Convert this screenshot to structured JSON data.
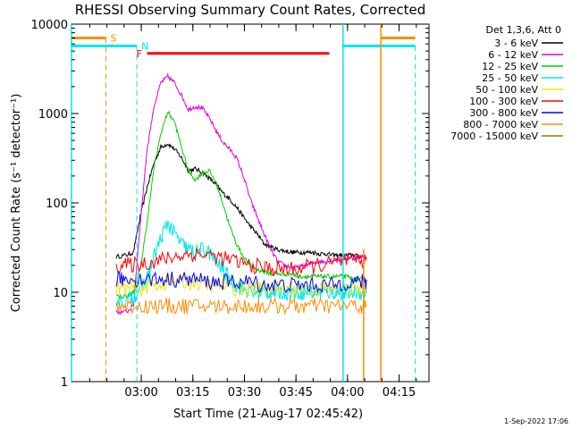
{
  "chart_data": {
    "type": "line",
    "title": "RHESSI Observing Summary Count Rates, Corrected",
    "xlabel": "Start Time (21-Aug-17 02:45:42)",
    "ylabel": "Corrected Count Rate (s⁻¹ detector⁻¹)",
    "yscale": "log",
    "ylim": [
      1,
      10000
    ],
    "xlim_minutes_after_start": [
      -6,
      98
    ],
    "x_tick_labels": [
      "03:00",
      "03:15",
      "03:30",
      "03:45",
      "04:00",
      "04:15"
    ],
    "x_tick_minutes": [
      14.3,
      29.3,
      44.3,
      59.3,
      74.3,
      89.3
    ],
    "y_tick_labels": [
      "1",
      "10",
      "100",
      "1000",
      "10000"
    ],
    "y_tick_values": [
      1,
      10,
      100,
      1000,
      10000
    ],
    "legend_header": "Det 1,3,6, Att 0",
    "legend_position": "right",
    "series": [
      {
        "name": "3 - 6 keV",
        "color": "#000000",
        "x": [
          7,
          10,
          12,
          14,
          16,
          18,
          20,
          22,
          24,
          26,
          28,
          30,
          32,
          34,
          36,
          38,
          40,
          42,
          44,
          46,
          48,
          50,
          52,
          54,
          56,
          58,
          60,
          62,
          64,
          66,
          68,
          70,
          72,
          74,
          76,
          78,
          80
        ],
        "values": [
          25,
          26,
          28,
          70,
          150,
          280,
          420,
          460,
          400,
          320,
          230,
          240,
          220,
          190,
          160,
          130,
          110,
          90,
          70,
          55,
          45,
          35,
          32,
          30,
          29,
          28,
          28,
          28,
          28,
          27,
          27,
          26,
          26,
          26,
          26,
          25,
          25
        ]
      },
      {
        "name": "6 - 12 keV",
        "color": "#e000e0",
        "x": [
          7,
          10,
          12,
          14,
          16,
          18,
          20,
          22,
          24,
          26,
          28,
          30,
          32,
          34,
          36,
          38,
          40,
          42,
          44,
          46,
          48,
          50,
          52,
          54,
          56,
          58,
          60,
          62,
          64,
          66,
          68,
          70,
          72,
          74,
          76,
          78,
          80
        ],
        "values": [
          6,
          6,
          7,
          60,
          400,
          1200,
          2200,
          2600,
          2200,
          1600,
          1100,
          1200,
          1150,
          900,
          650,
          480,
          400,
          320,
          200,
          110,
          70,
          45,
          30,
          22,
          20,
          19,
          19,
          20,
          21,
          22,
          22,
          23,
          23,
          24,
          24,
          25,
          25
        ]
      },
      {
        "name": "12 - 25 keV",
        "color": "#00d000",
        "x": [
          7,
          10,
          12,
          14,
          16,
          18,
          20,
          22,
          24,
          26,
          28,
          30,
          32,
          34,
          36,
          38,
          40,
          42,
          44,
          46,
          48,
          50,
          52,
          54,
          56,
          58,
          60,
          62,
          64,
          66,
          68,
          70,
          72,
          74,
          76,
          78,
          80
        ],
        "values": [
          9,
          9,
          10,
          18,
          60,
          250,
          600,
          1050,
          800,
          420,
          230,
          180,
          215,
          230,
          170,
          100,
          55,
          35,
          25,
          20,
          18,
          17,
          16,
          16,
          16,
          16,
          15,
          15,
          15,
          15,
          15,
          15,
          15,
          15,
          14,
          14,
          14
        ]
      },
      {
        "name": "25 - 50 keV",
        "color": "#00e8e8",
        "x": [
          7,
          10,
          12,
          14,
          16,
          18,
          20,
          22,
          24,
          26,
          28,
          30,
          32,
          34,
          36,
          38,
          40,
          42,
          44,
          46,
          48,
          50,
          52,
          54,
          56,
          58,
          60,
          62,
          64,
          66,
          68,
          70,
          72,
          74,
          76,
          78,
          80
        ],
        "values": [
          8,
          8,
          9,
          11,
          14,
          25,
          40,
          60,
          45,
          35,
          30,
          28,
          30,
          28,
          22,
          18,
          14,
          12,
          11,
          10,
          10,
          10,
          10,
          10,
          10,
          10,
          10,
          10,
          10,
          10,
          10,
          10,
          10,
          10,
          10,
          10,
          10
        ]
      },
      {
        "name": "50 - 100 keV",
        "color": "#e8e800",
        "x": [
          7,
          10,
          14,
          18,
          22,
          26,
          30,
          34,
          38,
          42,
          46,
          50,
          54,
          58,
          62,
          66,
          70,
          74,
          78,
          80
        ],
        "values": [
          11,
          11,
          11,
          12,
          13,
          13,
          13,
          12,
          12,
          11,
          11,
          11,
          11,
          11,
          11,
          11,
          11,
          11,
          11,
          11
        ]
      },
      {
        "name": "100 - 300 keV",
        "color": "#ff0000",
        "x": [
          7,
          10,
          14,
          18,
          22,
          26,
          30,
          34,
          38,
          42,
          46,
          50,
          54,
          58,
          62,
          66,
          70,
          74,
          78,
          80
        ],
        "values": [
          20,
          20,
          21,
          22,
          24,
          26,
          27,
          26,
          24,
          22,
          20,
          19,
          18,
          18,
          19,
          20,
          21,
          22,
          22,
          22
        ]
      },
      {
        "name": "300 - 800 keV",
        "color": "#0000ff",
        "x": [
          7,
          10,
          14,
          18,
          22,
          26,
          30,
          34,
          38,
          42,
          46,
          50,
          54,
          58,
          62,
          66,
          70,
          74,
          78,
          80
        ],
        "values": [
          14,
          14,
          14,
          14,
          14,
          14,
          14,
          13,
          13,
          13,
          13,
          12,
          12,
          12,
          12,
          12,
          12,
          13,
          13,
          13
        ]
      },
      {
        "name": "800 - 7000 keV",
        "color": "#ff8c00",
        "x": [
          7,
          10,
          14,
          18,
          22,
          26,
          30,
          34,
          38,
          42,
          46,
          50,
          54,
          58,
          62,
          66,
          70,
          74,
          78,
          80
        ],
        "values": [
          7,
          7,
          7,
          7,
          7,
          7,
          7,
          7,
          7,
          7,
          7,
          7,
          7,
          7,
          7,
          7,
          7,
          7,
          7,
          7
        ]
      },
      {
        "name": "7000 - 15000 keV",
        "color": "#a07000",
        "x": [],
        "values": []
      }
    ],
    "flag_markers": [
      {
        "label": "S",
        "color": "#ff8c00",
        "x": [
          -6,
          4
        ],
        "y": 7000,
        "dashed_line_x": 4
      },
      {
        "label": "N",
        "color": "#00e8e8",
        "x": [
          -6,
          13
        ],
        "y": 5700,
        "dashed_line_x": 13
      },
      {
        "label": "F",
        "color": "#ff0000",
        "x": [
          16,
          69
        ],
        "y": 4700
      },
      {
        "label": "",
        "color": "#00e8e8",
        "x": [
          73,
          94
        ],
        "y": 5700,
        "solid_line_x": 73,
        "dashed_line_x": 94
      },
      {
        "label": "",
        "color": "#ff8c00",
        "x": [
          84,
          94
        ],
        "y": 7000,
        "solid_line_x": 84,
        "solid_line_x2": 79
      },
      {
        "label": "",
        "color": "#00e8e8",
        "x": [],
        "y": 0,
        "solid_line_x": -6
      }
    ]
  },
  "footer_stamp": "1-Sep-2022 17:06"
}
